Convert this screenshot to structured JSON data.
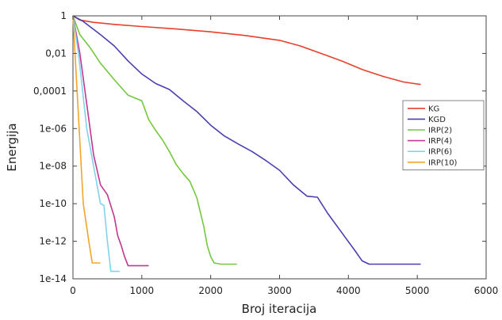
{
  "chart_data": {
    "type": "line",
    "xlabel": "Broj iteracija",
    "ylabel": "Energija",
    "xlim": [
      0,
      6000
    ],
    "ylog": true,
    "ylim": [
      1e-14,
      1
    ],
    "x_ticks": [
      0,
      1000,
      2000,
      3000,
      4000,
      5000,
      6000
    ],
    "x_tick_labels": [
      "0",
      "1000",
      "2000",
      "3000",
      "4000",
      "5000",
      "6000"
    ],
    "y_ticks": [
      1,
      0.01,
      0.0001,
      1e-06,
      1e-08,
      1e-10,
      1e-12,
      1e-14
    ],
    "y_tick_labels": [
      "1",
      "0,01",
      "0,0001",
      "1e-06",
      "1e-08",
      "1e-10",
      "1e-12",
      "1e-14"
    ],
    "grid": false,
    "legend_position": "right",
    "series": [
      {
        "name": "KG",
        "color": "#e8402a",
        "x": [
          0,
          100,
          300,
          600,
          1000,
          1500,
          2000,
          2500,
          3000,
          3300,
          3600,
          3900,
          4200,
          4500,
          4800,
          5050
        ],
        "y": [
          1,
          0.6,
          0.45,
          0.35,
          0.27,
          0.2,
          0.14,
          0.09,
          0.05,
          0.025,
          0.01,
          0.004,
          0.0014,
          0.0006,
          0.0003,
          0.00022
        ]
      },
      {
        "name": "KGD",
        "color": "#4a3fb0",
        "x": [
          0,
          150,
          400,
          600,
          800,
          1000,
          1200,
          1400,
          1600,
          1800,
          2000,
          2200,
          2400,
          2600,
          2800,
          3000,
          3200,
          3400,
          3550,
          3700,
          3900,
          4100,
          4200,
          4300,
          4500,
          5050
        ],
        "y": [
          1,
          0.5,
          0.1,
          0.025,
          0.004,
          0.0008,
          0.00025,
          0.00012,
          3e-05,
          8e-06,
          1.5e-06,
          4e-07,
          1.5e-07,
          6e-08,
          2e-08,
          6e-09,
          1e-09,
          2.5e-10,
          2.2e-10,
          3e-11,
          3e-12,
          3e-13,
          9e-14,
          6e-14,
          6e-14,
          6e-14
        ]
      },
      {
        "name": "IRP(2)",
        "color": "#74c83f",
        "x": [
          0,
          100,
          250,
          400,
          600,
          800,
          1000,
          1100,
          1200,
          1300,
          1400,
          1500,
          1600,
          1700,
          1800,
          1900,
          1950,
          2000,
          2050,
          2150,
          2380
        ],
        "y": [
          1,
          0.1,
          0.02,
          0.003,
          0.0004,
          6e-05,
          3e-05,
          3e-06,
          8e-07,
          2.5e-07,
          6e-08,
          1.2e-08,
          4e-09,
          1.5e-09,
          2e-10,
          6e-12,
          6e-13,
          1.5e-13,
          7e-14,
          6e-14,
          6e-14
        ]
      },
      {
        "name": "IRP(4)",
        "color": "#c2378f",
        "x": [
          0,
          100,
          200,
          300,
          400,
          500,
          600,
          650,
          700,
          750,
          800,
          1100
        ],
        "y": [
          1,
          0.01,
          2e-05,
          4e-08,
          1e-09,
          3e-10,
          2e-11,
          2e-12,
          6e-13,
          1.5e-13,
          5e-14,
          5e-14
        ]
      },
      {
        "name": "IRP(6)",
        "color": "#7fd3ee",
        "x": [
          0,
          80,
          200,
          300,
          400,
          450,
          500,
          550,
          600,
          680
        ],
        "y": [
          1,
          0.01,
          1e-06,
          1e-08,
          1e-10,
          8e-11,
          1e-12,
          2.5e-14,
          2.5e-14,
          2.5e-14
        ]
      },
      {
        "name": "IRP(10)",
        "color": "#f2a52a",
        "x": [
          0,
          60,
          150,
          230,
          280,
          400
        ],
        "y": [
          1,
          0.0001,
          1e-10,
          1e-12,
          7e-14,
          7e-14
        ]
      }
    ]
  }
}
